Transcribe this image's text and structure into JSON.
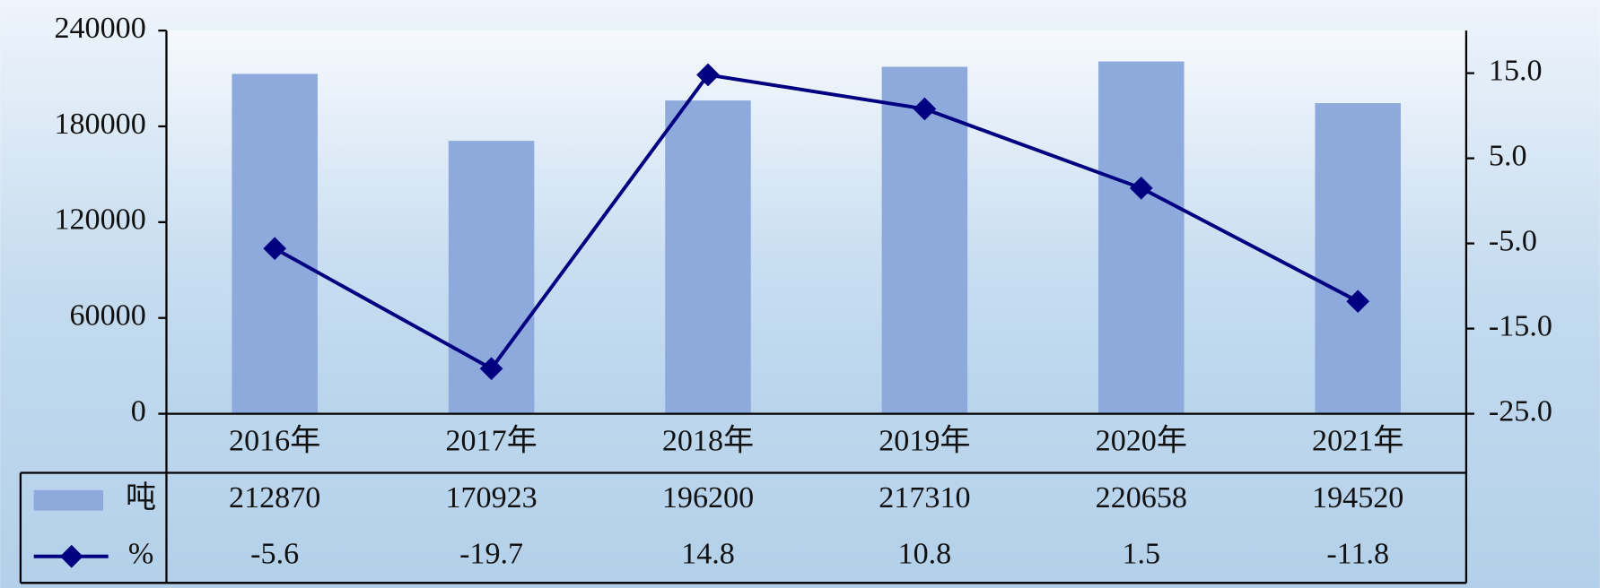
{
  "chart_data": {
    "type": "bar-line",
    "categories": [
      "2016年",
      "2017年",
      "2018年",
      "2019年",
      "2020年",
      "2021年"
    ],
    "series": [
      {
        "name": "吨",
        "type": "bar",
        "color": "#8eaadc",
        "values": [
          212870,
          170923,
          196200,
          217310,
          220658,
          194520
        ]
      },
      {
        "name": "%",
        "type": "line",
        "color": "#000080",
        "axis": "y2",
        "values": [
          -5.6,
          -19.7,
          14.8,
          10.8,
          1.5,
          -11.8
        ]
      }
    ],
    "ylim": [
      0,
      240000
    ],
    "yticks": [
      0,
      60000,
      120000,
      180000,
      240000
    ],
    "y2lim": [
      -25,
      20
    ],
    "y2ticks": [
      {
        "value": -25,
        "label": "-25.0"
      },
      {
        "value": -15,
        "label": "-15.0"
      },
      {
        "value": -5,
        "label": "-5.0"
      },
      {
        "value": 5,
        "label": "5.0"
      },
      {
        "value": 15,
        "label": "15.0"
      }
    ],
    "grid": false
  }
}
